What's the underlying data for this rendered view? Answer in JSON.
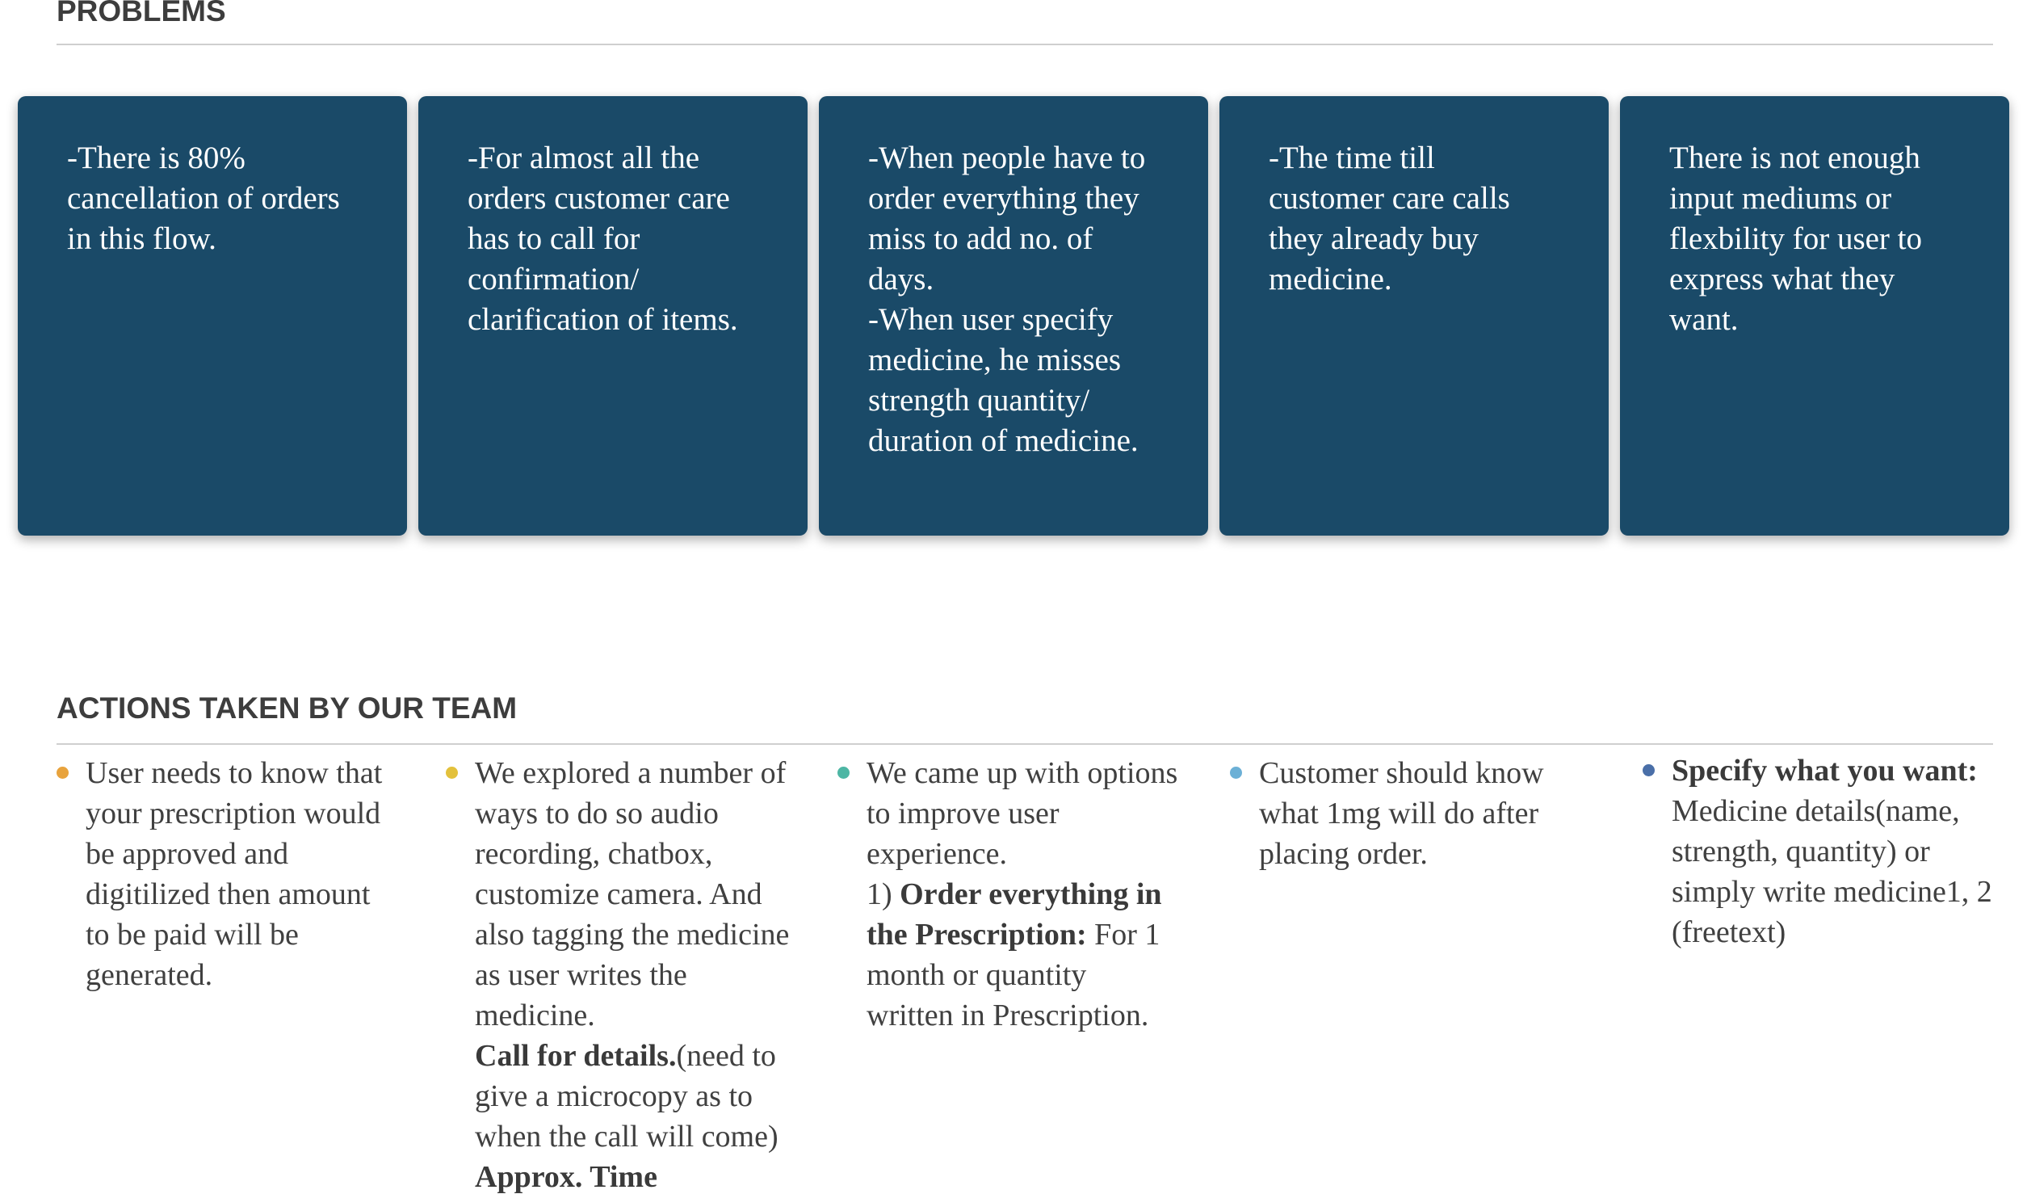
{
  "problems": {
    "heading": "PROBLEMS",
    "cards": [
      {
        "text": "-There is 80%\ncancellation of orders\nin this flow."
      },
      {
        "text": "-For almost all the\norders customer care\nhas to call for\nconfirmation/\nclarification of items."
      },
      {
        "text": "-When people have to\norder everything they\nmiss to add no. of\ndays.\n-When user specify\nmedicine, he misses\nstrength quantity/\nduration of medicine."
      },
      {
        "text": "-The time till\ncustomer care calls\nthey already buy\nmedicine."
      },
      {
        "text": "There is not enough\ninput mediums or\nflexbility for user to\nexpress what they\nwant."
      }
    ],
    "card_color": "#1a4a68"
  },
  "actions": {
    "heading": "ACTIONS TAKEN BY OUR TEAM",
    "items": [
      {
        "bullet_color": "#e8a33d",
        "text": "User needs to know that\nyour prescription would\nbe approved and\ndigitilized then amount\nto be paid will be\ngenerated."
      },
      {
        "bullet_color": "#e3c13c",
        "text_a": "We explored a number of\nways to do so audio\nrecording, chatbox,\ncustomize camera. And\nalso tagging the medicine\nas user writes the\nmedicine.\n",
        "bold_b": "Call for details.",
        "text_c": "(need to\ngive a microcopy as to\nwhen the call will come)\n",
        "bold_d": "Approx. Time"
      },
      {
        "bullet_color": "#4db6a4",
        "text_a": "We came up with options\nto improve user\nexperience.\n1)  ",
        "bold_b": "Order everything in\nthe Prescription:",
        "text_c": " For 1\nmonth or quantity\nwritten in Prescription."
      },
      {
        "bullet_color": "#6cb0d6",
        "text": "Customer should know\nwhat 1mg will do after\nplacing order."
      },
      {
        "bullet_color": "#4a6fa8",
        "bold_a": "Specify what you want:",
        "text_b": "\nMedicine details(name,\nstrength, quantity) or\nsimply write medicine1, 2\n(freetext)"
      }
    ]
  }
}
